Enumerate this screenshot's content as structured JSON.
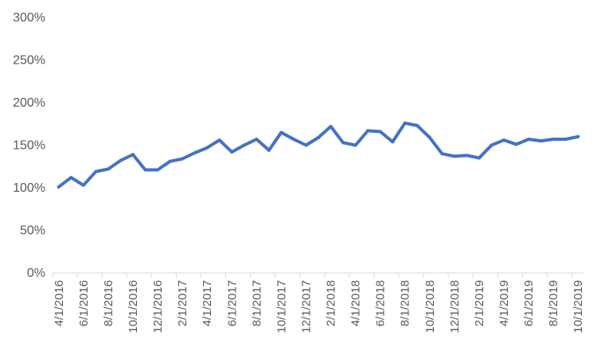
{
  "chart_data": {
    "type": "line",
    "title": "",
    "xlabel": "",
    "ylabel": "",
    "ylim": [
      0,
      300
    ],
    "y_ticks": [
      "0%",
      "50%",
      "100%",
      "150%",
      "200%",
      "250%",
      "300%"
    ],
    "x_tick_labels": [
      "4/1/2016",
      "6/1/2016",
      "8/1/2016",
      "10/1/2016",
      "12/1/2016",
      "2/1/2017",
      "4/1/2017",
      "6/1/2017",
      "8/1/2017",
      "10/1/2017",
      "12/1/2017",
      "2/1/2018",
      "4/1/2018",
      "6/1/2018",
      "8/1/2018",
      "10/1/2018",
      "12/1/2018",
      "2/1/2019",
      "4/1/2019",
      "6/1/2019",
      "8/1/2019",
      "10/1/2019"
    ],
    "x": [
      "4/1/2016",
      "5/1/2016",
      "6/1/2016",
      "7/1/2016",
      "8/1/2016",
      "9/1/2016",
      "10/1/2016",
      "11/1/2016",
      "12/1/2016",
      "1/1/2017",
      "2/1/2017",
      "3/1/2017",
      "4/1/2017",
      "5/1/2017",
      "6/1/2017",
      "7/1/2017",
      "8/1/2017",
      "9/1/2017",
      "10/1/2017",
      "11/1/2017",
      "12/1/2017",
      "1/1/2018",
      "2/1/2018",
      "3/1/2018",
      "4/1/2018",
      "5/1/2018",
      "6/1/2018",
      "7/1/2018",
      "8/1/2018",
      "9/1/2018",
      "10/1/2018",
      "11/1/2018",
      "12/1/2018",
      "1/1/2019",
      "2/1/2019",
      "3/1/2019",
      "4/1/2019",
      "5/1/2019",
      "6/1/2019",
      "7/1/2019",
      "8/1/2019",
      "9/1/2019",
      "10/1/2019"
    ],
    "series": [
      {
        "color": "#4472C4",
        "values": [
          101,
          112,
          103,
          119,
          122,
          132,
          139,
          121,
          121,
          131,
          134,
          141,
          147,
          156,
          142,
          150,
          157,
          144,
          165,
          157,
          150,
          159,
          172,
          153,
          150,
          167,
          166,
          154,
          176,
          173,
          159,
          140,
          137,
          138,
          135,
          150,
          156,
          151,
          157,
          155,
          157,
          157,
          160
        ]
      }
    ],
    "grid": false,
    "legend": "none"
  }
}
